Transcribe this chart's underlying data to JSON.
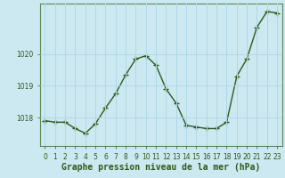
{
  "x": [
    0,
    1,
    2,
    3,
    4,
    5,
    6,
    7,
    8,
    9,
    10,
    11,
    12,
    13,
    14,
    15,
    16,
    17,
    18,
    19,
    20,
    21,
    22,
    23
  ],
  "y": [
    1017.9,
    1017.85,
    1017.85,
    1017.65,
    1017.5,
    1017.8,
    1018.3,
    1018.75,
    1019.35,
    1019.85,
    1019.95,
    1019.65,
    1018.9,
    1018.45,
    1017.75,
    1017.7,
    1017.65,
    1017.65,
    1017.85,
    1019.3,
    1019.85,
    1020.85,
    1021.35,
    1021.3
  ],
  "line_color": "#2d5a1b",
  "marker": "+",
  "markersize": 4,
  "markeredgewidth": 1.0,
  "linewidth": 1.0,
  "background_color": "#cce8f0",
  "grid_color": "#b0d8e8",
  "xlabel": "Graphe pression niveau de la mer (hPa)",
  "xlabel_fontsize": 7,
  "yticks": [
    1018,
    1019,
    1020
  ],
  "ylim": [
    1017.1,
    1021.6
  ],
  "xlim": [
    -0.5,
    23.5
  ],
  "xticks": [
    0,
    1,
    2,
    3,
    4,
    5,
    6,
    7,
    8,
    9,
    10,
    11,
    12,
    13,
    14,
    15,
    16,
    17,
    18,
    19,
    20,
    21,
    22,
    23
  ],
  "tick_fontsize": 5.5,
  "tick_color": "#2d5a1b",
  "axis_color": "#2d5a1b",
  "spine_color": "#5a8a5a"
}
